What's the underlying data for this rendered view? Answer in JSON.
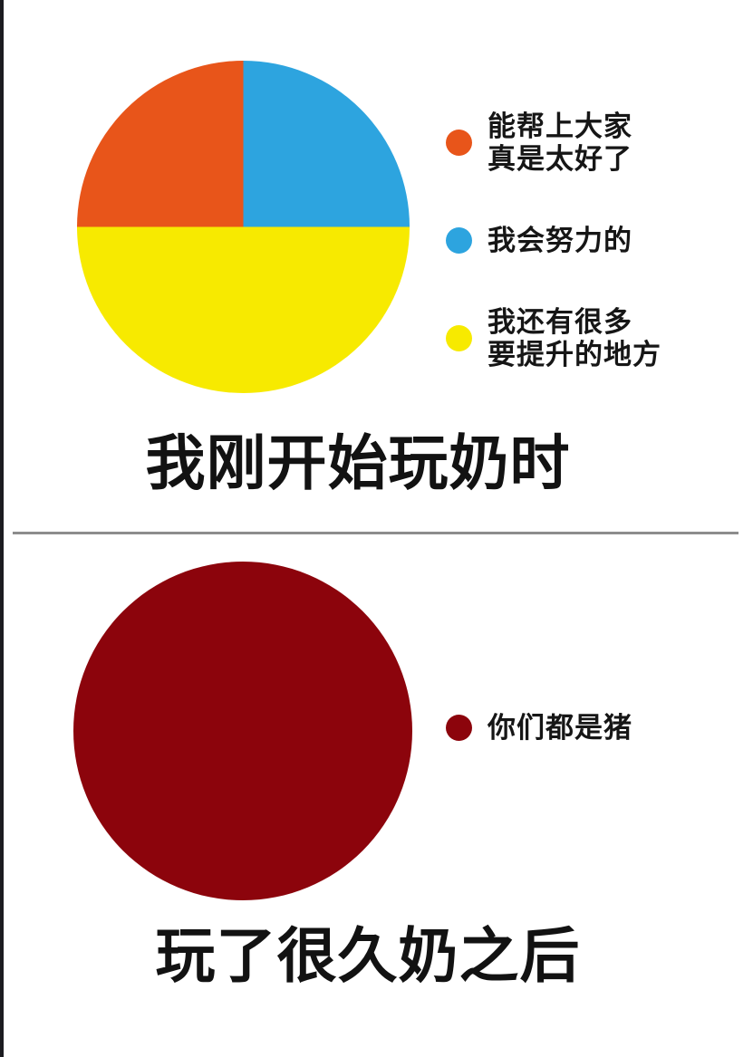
{
  "page": {
    "background_color": "#ffffff",
    "left_border_color": "#1c1c20",
    "divider_color": "#8d8d8d"
  },
  "chart_data": [
    {
      "type": "pie",
      "title": "我刚开始玩奶时",
      "legend_position": "right",
      "slices": [
        {
          "label": "能帮上大家\n真是太好了",
          "value": 25,
          "color": "#E8551A"
        },
        {
          "label": "我会努力的",
          "value": 25,
          "color": "#2DA4DF"
        },
        {
          "label": "我还有很多\n要提升的地方",
          "value": 50,
          "color": "#F7EA00"
        }
      ]
    },
    {
      "type": "pie",
      "title": "玩了很久奶之后",
      "legend_position": "right",
      "slices": [
        {
          "label": "你们都是猪",
          "value": 100,
          "color": "#8C040C"
        }
      ]
    }
  ]
}
